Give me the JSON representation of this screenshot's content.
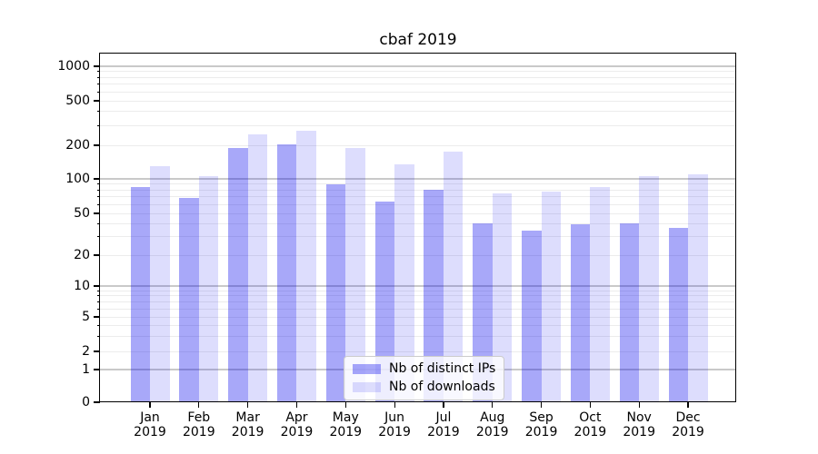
{
  "chart_data": {
    "type": "bar",
    "title": "cbaf 2019",
    "categories": [
      "Jan 2019",
      "Feb 2019",
      "Mar 2019",
      "Apr 2019",
      "May 2019",
      "Jun 2019",
      "Jul 2019",
      "Aug 2019",
      "Sep 2019",
      "Oct 2019",
      "Nov 2019",
      "Dec 2019"
    ],
    "series": [
      {
        "name": "Nb of distinct IPs",
        "color": "#a8a8f6",
        "color_rgba": "rgba(0,0,238,0.34)",
        "values": [
          85,
          68,
          190,
          205,
          90,
          63,
          80,
          40,
          34,
          39,
          40,
          36
        ]
      },
      {
        "name": "Nb of downloads",
        "color": "#dcdcfb",
        "color_rgba": "rgba(0,0,238,0.135)",
        "values": [
          130,
          105,
          250,
          270,
          190,
          135,
          175,
          75,
          78,
          85,
          105,
          110
        ]
      }
    ],
    "xlabel": "",
    "ylabel": "",
    "yscale": "symlog (linear 0-1, log above 1)",
    "ytick_values": [
      0,
      1,
      2,
      5,
      10,
      20,
      50,
      100,
      200,
      500,
      1000
    ],
    "ylim": [
      0,
      1300
    ],
    "grid": "both (major darker, minor lighter)",
    "legend": {
      "position": "lower center",
      "entries": [
        "Nb of distinct IPs",
        "Nb of downloads"
      ]
    }
  }
}
